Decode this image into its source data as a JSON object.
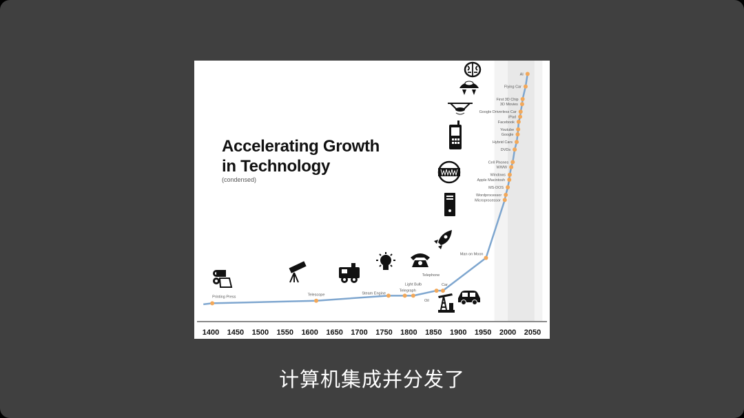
{
  "caption": "计算机集成并分发了",
  "chart_data": {
    "type": "line",
    "title": "Accelerating Growth in Technology",
    "title_lines": [
      "Accelerating Growth",
      "in Technology"
    ],
    "subtitle": "(condensed)",
    "xlabel": "",
    "ylabel": "",
    "xlim": [
      1400,
      2050
    ],
    "ylim": [
      0,
      100
    ],
    "x_ticks": [
      "1400",
      "1450",
      "1500",
      "1550",
      "1600",
      "1650",
      "1700",
      "1750",
      "1800",
      "1850",
      "1900",
      "1950",
      "2000",
      "2050"
    ],
    "grid": false,
    "line_color": "#7ea6cf",
    "marker_color": "#f2a85a",
    "shaded_bands": [
      [
        1973,
        2070
      ],
      [
        2000,
        2054
      ]
    ],
    "points": [
      {
        "label": "Printing Press",
        "x": 1403,
        "y": 7
      },
      {
        "label": "Telescope",
        "x": 1613,
        "y": 8
      },
      {
        "label": "Steam Engine",
        "x": 1759,
        "y": 10
      },
      {
        "label": "Telegraph",
        "x": 1792,
        "y": 10
      },
      {
        "label": "Light Bulb",
        "x": 1809,
        "y": 10
      },
      {
        "label": "Telephone",
        "x": 1856,
        "y": 12
      },
      {
        "label": "Car",
        "x": 1869,
        "y": 12
      },
      {
        "label": "Man on Moon",
        "x": 1956,
        "y": 25
      },
      {
        "label": "Microprocessor",
        "x": 1994,
        "y": 48
      },
      {
        "label": "Wordprocessor",
        "x": 1996,
        "y": 50
      },
      {
        "label": "MS-DOS",
        "x": 2000,
        "y": 53
      },
      {
        "label": "Apple Macintosh",
        "x": 2003,
        "y": 56
      },
      {
        "label": "Windows",
        "x": 2004,
        "y": 58
      },
      {
        "label": "WWW",
        "x": 2007,
        "y": 61
      },
      {
        "label": "Cell Phones",
        "x": 2010,
        "y": 63
      },
      {
        "label": "DVDs",
        "x": 2014,
        "y": 68
      },
      {
        "label": "Hybrid Cars",
        "x": 2018,
        "y": 71
      },
      {
        "label": "Google",
        "x": 2020,
        "y": 74
      },
      {
        "label": "Youtube",
        "x": 2021,
        "y": 76
      },
      {
        "label": "Facebook",
        "x": 2022,
        "y": 79
      },
      {
        "label": "iPad",
        "x": 2025,
        "y": 81
      },
      {
        "label": "Google Driverless Car",
        "x": 2026,
        "y": 83
      },
      {
        "label": "3D Movies",
        "x": 2029,
        "y": 86
      },
      {
        "label": "First 3D Chip",
        "x": 2030,
        "y": 88
      },
      {
        "label": "Flying Car",
        "x": 2036,
        "y": 93
      },
      {
        "label": "AI",
        "x": 2040,
        "y": 98
      }
    ],
    "annotations": [
      {
        "label": "Oil",
        "x": 1852
      }
    ],
    "icons": [
      "printing-press-icon",
      "telescope-icon",
      "train-icon",
      "light-bulb-icon",
      "telephone-icon",
      "rocket-icon",
      "oil-pump-icon",
      "car-icon",
      "computer-tower-icon",
      "www-globe-icon",
      "cell-phone-icon",
      "drone-icon",
      "flying-car-icon",
      "brain-icon"
    ]
  }
}
